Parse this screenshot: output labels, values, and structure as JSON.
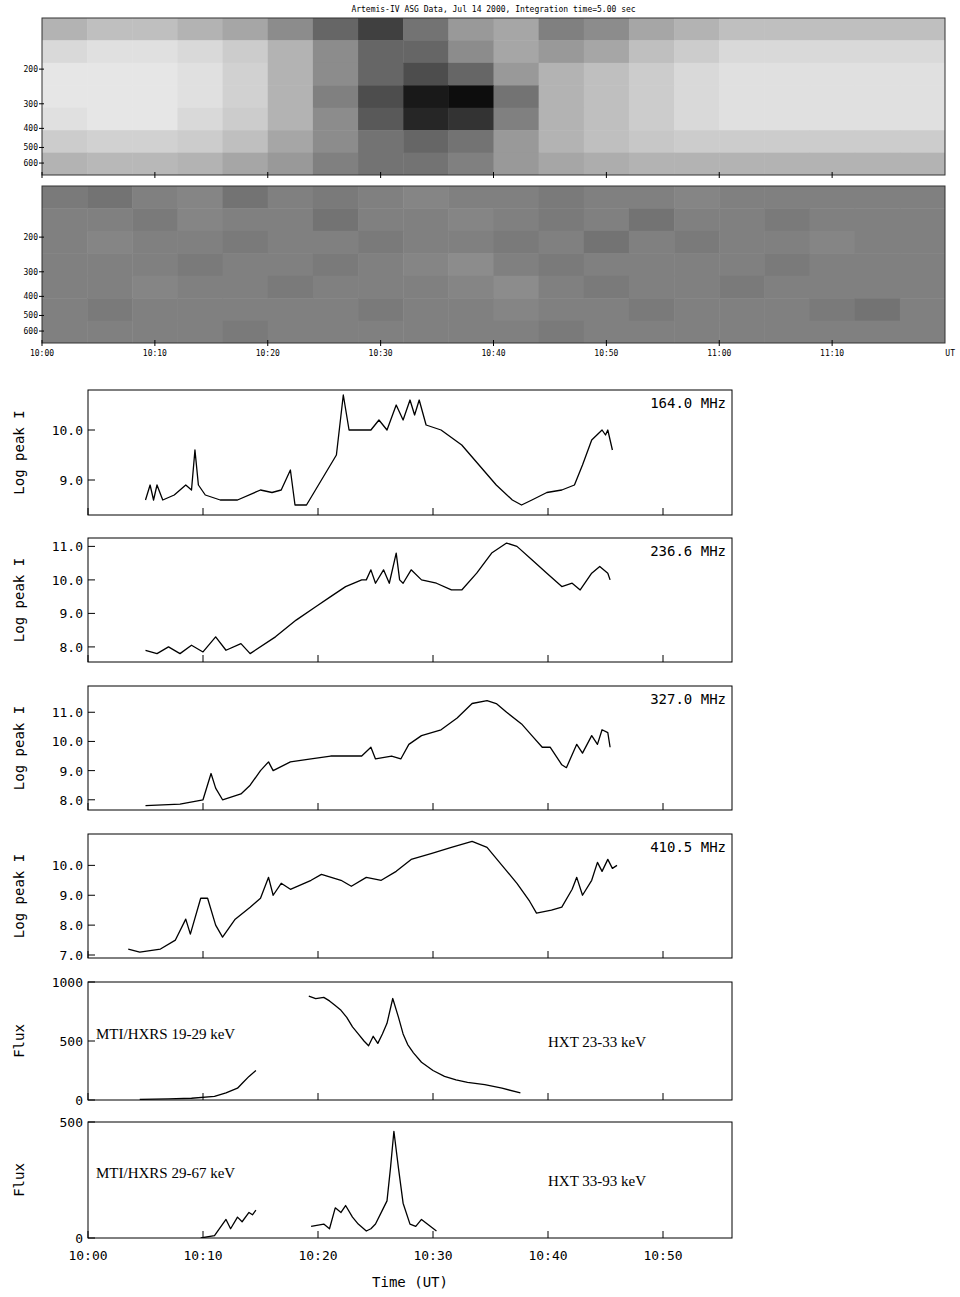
{
  "chart_data": [
    {
      "type": "heatmap",
      "title": "Artemis-IV ASG Data, Jul 14 2000, Integration time=5.00 sec",
      "x": [
        2,
        6,
        10,
        14,
        18,
        22,
        26,
        30,
        34,
        38,
        42,
        46,
        50,
        54,
        58,
        62,
        66,
        70,
        74,
        78
      ],
      "y": [
        125,
        163,
        212,
        276,
        358,
        466,
        606
      ],
      "cells": [
        [
          0.3,
          0.25,
          0.25,
          0.3,
          0.35,
          0.45,
          0.6,
          0.75,
          0.55,
          0.4,
          0.35,
          0.5,
          0.45,
          0.35,
          0.3,
          0.25,
          0.25,
          0.25,
          0.25,
          0.25
        ],
        [
          0.15,
          0.12,
          0.12,
          0.15,
          0.2,
          0.3,
          0.45,
          0.6,
          0.6,
          0.45,
          0.35,
          0.4,
          0.35,
          0.25,
          0.2,
          0.15,
          0.15,
          0.15,
          0.15,
          0.15
        ],
        [
          0.1,
          0.1,
          0.1,
          0.12,
          0.18,
          0.3,
          0.45,
          0.6,
          0.7,
          0.6,
          0.4,
          0.3,
          0.25,
          0.2,
          0.15,
          0.12,
          0.12,
          0.12,
          0.12,
          0.12
        ],
        [
          0.1,
          0.1,
          0.1,
          0.12,
          0.18,
          0.3,
          0.5,
          0.7,
          0.9,
          0.95,
          0.55,
          0.3,
          0.25,
          0.2,
          0.15,
          0.12,
          0.12,
          0.12,
          0.12,
          0.12
        ],
        [
          0.12,
          0.1,
          0.1,
          0.15,
          0.2,
          0.3,
          0.45,
          0.65,
          0.85,
          0.8,
          0.5,
          0.3,
          0.25,
          0.2,
          0.15,
          0.12,
          0.12,
          0.12,
          0.12,
          0.12
        ],
        [
          0.2,
          0.18,
          0.18,
          0.2,
          0.25,
          0.35,
          0.45,
          0.55,
          0.6,
          0.55,
          0.4,
          0.3,
          0.25,
          0.22,
          0.2,
          0.2,
          0.2,
          0.2,
          0.2,
          0.2
        ],
        [
          0.3,
          0.28,
          0.28,
          0.3,
          0.35,
          0.4,
          0.5,
          0.55,
          0.55,
          0.5,
          0.4,
          0.35,
          0.32,
          0.3,
          0.3,
          0.3,
          0.3,
          0.3,
          0.3,
          0.3
        ]
      ],
      "zlim": [
        0,
        1
      ],
      "xlim": [
        0,
        80
      ],
      "xticks": [
        0,
        10,
        20,
        30,
        40,
        50,
        60,
        70
      ],
      "ylim": [
        110,
        690
      ],
      "yticks": [
        200,
        300,
        400,
        500,
        600
      ],
      "log": "y",
      "tick_labels": "y"
    },
    {
      "type": "heatmap",
      "x_label": "UT",
      "x": [
        2,
        6,
        10,
        14,
        18,
        22,
        26,
        30,
        34,
        38,
        42,
        46,
        50,
        54,
        58,
        62,
        66,
        70,
        74,
        78
      ],
      "y": [
        125,
        163,
        212,
        276,
        358,
        466,
        606
      ],
      "cells": [
        [
          0.52,
          0.55,
          0.5,
          0.48,
          0.55,
          0.5,
          0.52,
          0.5,
          0.48,
          0.5,
          0.5,
          0.52,
          0.5,
          0.5,
          0.48,
          0.5,
          0.5,
          0.5,
          0.5,
          0.5
        ],
        [
          0.5,
          0.5,
          0.52,
          0.48,
          0.5,
          0.5,
          0.55,
          0.5,
          0.5,
          0.48,
          0.5,
          0.52,
          0.5,
          0.55,
          0.5,
          0.5,
          0.52,
          0.5,
          0.5,
          0.5
        ],
        [
          0.5,
          0.48,
          0.5,
          0.5,
          0.52,
          0.5,
          0.5,
          0.52,
          0.5,
          0.5,
          0.52,
          0.5,
          0.55,
          0.5,
          0.52,
          0.5,
          0.5,
          0.48,
          0.5,
          0.5
        ],
        [
          0.5,
          0.5,
          0.5,
          0.52,
          0.5,
          0.5,
          0.52,
          0.5,
          0.48,
          0.45,
          0.5,
          0.52,
          0.5,
          0.5,
          0.5,
          0.5,
          0.52,
          0.5,
          0.5,
          0.5
        ],
        [
          0.5,
          0.5,
          0.48,
          0.5,
          0.5,
          0.52,
          0.5,
          0.5,
          0.5,
          0.48,
          0.45,
          0.5,
          0.52,
          0.5,
          0.5,
          0.52,
          0.5,
          0.5,
          0.5,
          0.5
        ],
        [
          0.5,
          0.52,
          0.5,
          0.5,
          0.5,
          0.5,
          0.5,
          0.52,
          0.5,
          0.5,
          0.48,
          0.5,
          0.5,
          0.52,
          0.5,
          0.5,
          0.5,
          0.52,
          0.55,
          0.5
        ],
        [
          0.5,
          0.5,
          0.5,
          0.5,
          0.52,
          0.5,
          0.5,
          0.5,
          0.5,
          0.5,
          0.5,
          0.52,
          0.5,
          0.5,
          0.5,
          0.5,
          0.5,
          0.5,
          0.5,
          0.5
        ]
      ],
      "zlim": [
        0,
        1
      ],
      "xlim": [
        0,
        80
      ],
      "xticks": [
        {
          "value": 0,
          "label": "10:00"
        },
        {
          "value": 10,
          "label": "10:10"
        },
        {
          "value": 20,
          "label": "10:20"
        },
        {
          "value": 30,
          "label": "10:30"
        },
        {
          "value": 40,
          "label": "10:40"
        },
        {
          "value": 50,
          "label": "10:50"
        },
        {
          "value": 60,
          "label": "11:00"
        },
        {
          "value": 70,
          "label": "11:10"
        }
      ],
      "ylim": [
        110,
        690
      ],
      "yticks": [
        200,
        300,
        400,
        500,
        600
      ],
      "log": "y"
    },
    {
      "type": "line",
      "title": "164.0 MHz",
      "y_label": "Log peak I",
      "color": "#000000",
      "x": [
        5.0,
        5.4,
        5.7,
        6.0,
        6.5,
        7.5,
        8.5,
        9.0,
        9.3,
        9.6,
        10.2,
        11.5,
        13.0,
        15.0,
        16.0,
        16.8,
        17.6,
        18.0,
        19.0,
        20.3,
        21.6,
        22.2,
        22.7,
        23.8,
        24.6,
        25.3,
        26.0,
        26.8,
        27.4,
        28.0,
        28.4,
        28.8,
        29.4,
        30.7,
        32.5,
        34.0,
        35.5,
        36.9,
        37.7,
        38.6,
        39.9,
        41.2,
        42.3,
        43.0,
        43.8,
        44.7,
        45.0,
        45.2,
        45.6
      ],
      "values": [
        8.6,
        8.9,
        8.6,
        8.9,
        8.6,
        8.7,
        8.9,
        8.8,
        9.6,
        8.9,
        8.7,
        8.6,
        8.6,
        8.8,
        8.75,
        8.8,
        9.2,
        8.5,
        8.5,
        9.0,
        9.5,
        10.7,
        10.0,
        10.0,
        10.0,
        10.2,
        10.0,
        10.5,
        10.2,
        10.6,
        10.3,
        10.6,
        10.1,
        10.0,
        9.7,
        9.3,
        8.9,
        8.6,
        8.5,
        8.6,
        8.75,
        8.8,
        8.9,
        9.3,
        9.8,
        10.0,
        9.9,
        10.0,
        9.6
      ],
      "xlim": [
        0,
        56
      ],
      "xticks": [
        0,
        10,
        20,
        30,
        40,
        50
      ],
      "ylim": [
        8.3,
        10.8
      ],
      "yticks": [
        {
          "value": 9,
          "label": "9.0"
        },
        {
          "value": 10,
          "label": "10.0"
        }
      ],
      "tick_labels": "y"
    },
    {
      "type": "line",
      "title": "236.6 MHz",
      "y_label": "Log peak I",
      "color": "#000000",
      "x": [
        5.0,
        6.0,
        7.0,
        8.0,
        9.0,
        10.0,
        11.1,
        12.0,
        13.3,
        14.1,
        16.3,
        18.1,
        19.8,
        21.1,
        22.4,
        23.8,
        24.2,
        24.6,
        25.0,
        25.7,
        26.2,
        26.8,
        27.1,
        27.4,
        28.1,
        29.0,
        30.3,
        31.6,
        32.5,
        33.8,
        35.1,
        36.4,
        37.3,
        38.6,
        39.9,
        41.2,
        42.1,
        42.8,
        43.8,
        44.5,
        45.2,
        45.4
      ],
      "values": [
        7.9,
        7.8,
        8.0,
        7.8,
        8.05,
        7.85,
        8.3,
        7.9,
        8.1,
        7.8,
        8.3,
        8.8,
        9.2,
        9.5,
        9.8,
        10.0,
        10.0,
        10.3,
        9.9,
        10.3,
        9.9,
        10.8,
        10.0,
        9.9,
        10.3,
        10.0,
        9.9,
        9.7,
        9.7,
        10.2,
        10.8,
        11.1,
        11.0,
        10.6,
        10.2,
        9.8,
        9.9,
        9.7,
        10.2,
        10.4,
        10.2,
        10.0
      ],
      "xlim": [
        0,
        56
      ],
      "xticks": [
        0,
        10,
        20,
        30,
        40,
        50
      ],
      "ylim": [
        7.55,
        11.25
      ],
      "yticks": [
        {
          "value": 8,
          "label": "8.0"
        },
        {
          "value": 9,
          "label": "9.0"
        },
        {
          "value": 10,
          "label": "10.0"
        },
        {
          "value": 11,
          "label": "11.0"
        }
      ],
      "tick_labels": "y"
    },
    {
      "type": "line",
      "title": "327.0 MHz",
      "y_label": "Log peak I",
      "color": "#000000",
      "x": [
        5.0,
        8.0,
        10.0,
        10.7,
        11.1,
        11.7,
        13.3,
        14.1,
        15.0,
        15.7,
        16.1,
        17.6,
        19.4,
        21.1,
        23.8,
        24.6,
        25.0,
        26.4,
        27.2,
        27.9,
        29.0,
        30.7,
        32.1,
        33.4,
        34.7,
        35.5,
        36.4,
        37.7,
        38.6,
        39.5,
        40.2,
        41.2,
        41.6,
        42.5,
        43.0,
        43.8,
        44.3,
        44.7,
        45.2,
        45.4
      ],
      "values": [
        7.8,
        7.85,
        8.0,
        8.9,
        8.4,
        8.0,
        8.2,
        8.5,
        9.0,
        9.3,
        9.0,
        9.3,
        9.4,
        9.5,
        9.5,
        9.8,
        9.4,
        9.5,
        9.4,
        9.9,
        10.2,
        10.4,
        10.8,
        11.3,
        11.4,
        11.3,
        11.0,
        10.6,
        10.2,
        9.8,
        9.8,
        9.2,
        9.1,
        9.9,
        9.6,
        10.2,
        9.9,
        10.4,
        10.3,
        9.8
      ],
      "xlim": [
        0,
        56
      ],
      "xticks": [
        0,
        10,
        20,
        30,
        40,
        50
      ],
      "ylim": [
        7.65,
        11.9
      ],
      "yticks": [
        {
          "value": 8,
          "label": "8.0"
        },
        {
          "value": 9,
          "label": "9.0"
        },
        {
          "value": 10,
          "label": "10.0"
        },
        {
          "value": 11,
          "label": "11.0"
        }
      ],
      "tick_labels": "y"
    },
    {
      "type": "line",
      "title": "410.5 MHz",
      "y_label": "Log peak I",
      "color": "#000000",
      "x": [
        3.5,
        4.5,
        6.3,
        7.6,
        8.5,
        8.9,
        9.8,
        10.4,
        11.1,
        11.7,
        12.8,
        14.1,
        15.0,
        15.7,
        16.1,
        16.8,
        17.6,
        19.4,
        20.3,
        22.0,
        22.9,
        24.2,
        25.5,
        26.8,
        28.1,
        29.9,
        31.6,
        33.4,
        34.7,
        36.0,
        37.3,
        38.4,
        39.0,
        40.3,
        41.2,
        42.1,
        42.5,
        43.0,
        43.8,
        44.3,
        44.7,
        45.2,
        45.6,
        46.0
      ],
      "values": [
        7.2,
        7.1,
        7.2,
        7.5,
        8.2,
        7.7,
        8.9,
        8.9,
        8.0,
        7.6,
        8.2,
        8.6,
        8.9,
        9.6,
        9.0,
        9.4,
        9.2,
        9.5,
        9.7,
        9.5,
        9.3,
        9.6,
        9.5,
        9.8,
        10.2,
        10.4,
        10.6,
        10.8,
        10.6,
        10.0,
        9.4,
        8.8,
        8.4,
        8.5,
        8.6,
        9.2,
        9.6,
        9.0,
        9.5,
        10.1,
        9.8,
        10.2,
        9.9,
        10.0
      ],
      "xlim": [
        0,
        56
      ],
      "xticks": [
        0,
        10,
        20,
        30,
        40,
        50
      ],
      "ylim": [
        6.9,
        11.05
      ],
      "yticks": [
        {
          "value": 7,
          "label": "7.0"
        },
        {
          "value": 8,
          "label": "8.0"
        },
        {
          "value": 9,
          "label": "9.0"
        },
        {
          "value": 10,
          "label": "10.0"
        }
      ],
      "tick_labels": "y"
    },
    {
      "type": "line",
      "y_label": "Flux",
      "series": [
        {
          "name": "MTI/HXRS 19-29 keV",
          "color": "#000000",
          "x": [
            4.5,
            7.0,
            9.0,
            11.0,
            12.0,
            13.0,
            13.5,
            14.0,
            14.6
          ],
          "values": [
            5,
            10,
            15,
            30,
            60,
            100,
            150,
            200,
            250
          ]
        },
        {
          "name": "HXT 23-33 keV",
          "color": "#000000",
          "x": [
            19.2,
            19.8,
            20.5,
            21.0,
            21.5,
            22.0,
            22.5,
            23.0,
            23.5,
            24.0,
            24.4,
            24.8,
            25.2,
            25.6,
            26.0,
            26.5,
            27.0,
            27.4,
            27.8,
            28.3,
            29.0,
            30.0,
            31.0,
            32.0,
            33.0,
            34.5,
            36.0,
            37.6
          ],
          "values": [
            880,
            860,
            870,
            840,
            800,
            760,
            700,
            620,
            560,
            500,
            460,
            540,
            480,
            560,
            650,
            860,
            700,
            560,
            470,
            400,
            320,
            250,
            200,
            170,
            150,
            130,
            100,
            60
          ]
        }
      ],
      "xlim": [
        0,
        56
      ],
      "xticks": [
        0,
        10,
        20,
        30,
        40,
        50
      ],
      "ylim": [
        0,
        1000
      ],
      "yticks": [
        0,
        500,
        1000
      ],
      "tick_labels": "y"
    },
    {
      "type": "line",
      "y_label": "Flux",
      "x_label": "Time (UT)",
      "series": [
        {
          "name": "MTI/HXRS 29-67 keV",
          "color": "#000000",
          "x": [
            9.8,
            11.0,
            12.0,
            12.4,
            13.0,
            13.4,
            14.0,
            14.3,
            14.6
          ],
          "values": [
            0,
            10,
            80,
            40,
            90,
            70,
            110,
            100,
            120
          ]
        },
        {
          "name": "HXT 33-93 keV",
          "color": "#000000",
          "x": [
            19.4,
            20.5,
            21.0,
            21.5,
            22.0,
            22.4,
            23.0,
            23.5,
            24.2,
            24.6,
            25.0,
            25.6,
            26.0,
            26.3,
            26.6,
            27.0,
            27.4,
            28.0,
            28.5,
            29.0,
            30.3
          ],
          "values": [
            50,
            60,
            40,
            130,
            110,
            140,
            90,
            60,
            30,
            40,
            60,
            120,
            160,
            300,
            460,
            300,
            150,
            60,
            50,
            80,
            30
          ]
        }
      ],
      "xlim": [
        0,
        56
      ],
      "xticks": [
        {
          "value": 0,
          "label": "10:00"
        },
        {
          "value": 10,
          "label": "10:10"
        },
        {
          "value": 20,
          "label": "10:20"
        },
        {
          "value": 30,
          "label": "10:30"
        },
        {
          "value": 40,
          "label": "10:40"
        },
        {
          "value": 50,
          "label": "10:50"
        }
      ],
      "ylim": [
        0,
        500
      ],
      "yticks": [
        0,
        500
      ]
    }
  ]
}
